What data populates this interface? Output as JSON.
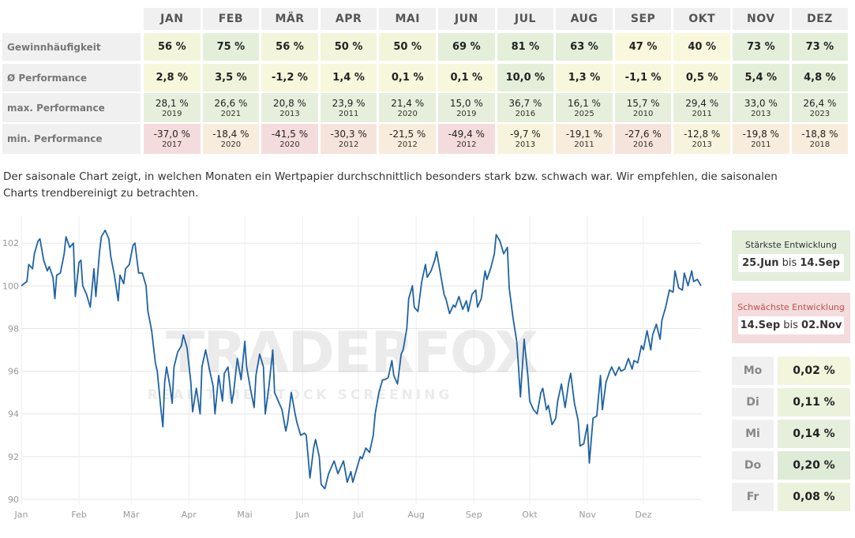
{
  "table": {
    "months": [
      "JAN",
      "FEB",
      "MÄR",
      "APR",
      "MAI",
      "JUN",
      "JUL",
      "AUG",
      "SEP",
      "OKT",
      "NOV",
      "DEZ"
    ],
    "rows": [
      {
        "label": "Gewinnhäufigkeit",
        "cells": [
          "56 %",
          "75 %",
          "56 %",
          "50 %",
          "50 %",
          "69 %",
          "81 %",
          "63 %",
          "47 %",
          "40 %",
          "73 %",
          "73 %"
        ]
      },
      {
        "label": "Ø Performance",
        "cells": [
          "2,8 %",
          "3,5 %",
          "-1,2 %",
          "1,4 %",
          "0,1 %",
          "0,1 %",
          "10,0 %",
          "1,3 %",
          "-1,1 %",
          "0,5 %",
          "5,4 %",
          "4,8 %"
        ]
      },
      {
        "label": "max. Performance",
        "cells": [
          {
            "value": "28,1 %",
            "year": "2019"
          },
          {
            "value": "26,6 %",
            "year": "2021"
          },
          {
            "value": "20,8 %",
            "year": "2013"
          },
          {
            "value": "23,9 %",
            "year": "2011"
          },
          {
            "value": "21,4 %",
            "year": "2020"
          },
          {
            "value": "15,0 %",
            "year": "2019"
          },
          {
            "value": "36,7 %",
            "year": "2016"
          },
          {
            "value": "16,1 %",
            "year": "2025"
          },
          {
            "value": "15,7 %",
            "year": "2010"
          },
          {
            "value": "29,4 %",
            "year": "2011"
          },
          {
            "value": "33,0 %",
            "year": "2013"
          },
          {
            "value": "26,4 %",
            "year": "2023"
          }
        ]
      },
      {
        "label": "min. Performance",
        "cells": [
          {
            "value": "-37,0 %",
            "year": "2017"
          },
          {
            "value": "-18,4 %",
            "year": "2020"
          },
          {
            "value": "-41,5 %",
            "year": "2020"
          },
          {
            "value": "-30,3 %",
            "year": "2012"
          },
          {
            "value": "-21,5 %",
            "year": "2012"
          },
          {
            "value": "-49,4 %",
            "year": "2012"
          },
          {
            "value": "-9,7 %",
            "year": "2013"
          },
          {
            "value": "-19,1 %",
            "year": "2011"
          },
          {
            "value": "-27,6 %",
            "year": "2016"
          },
          {
            "value": "-12,8 %",
            "year": "2013"
          },
          {
            "value": "-19,8 %",
            "year": "2011"
          },
          {
            "value": "-18,8 %",
            "year": "2018"
          }
        ]
      }
    ]
  },
  "description": "Der saisonale Chart zeigt, in welchen Monaten ein Wertpapier durchschnittlich besonders stark bzw. schwach war. Wir empfehlen, die saisonalen Charts trendbereinigt zu betrachten.",
  "chart_data": {
    "type": "line",
    "color": "#1f63a3",
    "grid": true,
    "x": [
      0,
      3,
      4,
      6,
      7,
      9,
      10,
      12,
      14,
      15,
      17,
      18,
      19,
      21,
      23,
      24,
      26,
      28,
      29,
      31,
      32,
      33,
      35,
      37,
      39,
      40,
      42,
      43,
      45,
      47,
      48,
      50,
      52,
      53,
      55,
      56,
      58,
      60,
      61,
      63,
      65,
      67,
      68,
      70,
      72,
      73,
      75,
      76,
      77,
      78,
      80,
      81,
      82,
      84,
      86,
      87,
      89,
      91,
      92,
      94,
      96,
      97,
      99,
      101,
      103,
      104,
      106,
      108,
      109,
      111,
      113,
      114,
      116,
      118,
      120,
      121,
      123,
      125,
      126,
      128,
      130,
      131,
      133,
      135,
      136,
      138,
      140,
      142,
      143,
      145,
      147,
      148,
      150,
      152,
      153,
      155,
      157,
      158,
      160,
      161,
      163,
      165,
      167,
      168,
      170,
      172,
      173,
      175,
      177,
      178,
      180,
      182,
      183,
      185,
      187,
      189,
      190,
      192,
      194,
      195,
      197,
      199,
      200,
      202,
      204,
      205,
      207,
      208,
      210,
      211,
      213,
      215,
      217,
      218,
      220,
      222,
      223,
      225,
      227,
      228,
      230,
      232,
      233,
      235,
      237,
      239,
      240,
      242,
      244,
      245,
      247,
      249,
      250,
      252,
      254,
      255,
      257,
      259,
      261,
      262,
      264,
      266,
      267,
      268,
      270,
      272,
      273,
      275,
      277,
      279,
      280,
      282,
      283,
      285,
      287,
      288,
      290,
      292,
      294,
      295,
      297,
      299,
      300,
      302,
      304,
      305,
      307,
      309,
      311,
      312,
      314,
      316,
      317,
      319,
      321,
      322,
      324,
      326,
      328,
      329,
      331,
      333,
      334,
      336,
      338,
      339,
      341,
      343,
      344,
      346,
      348,
      350,
      351,
      353,
      355,
      356,
      358,
      360,
      361,
      363,
      365
    ],
    "values": [
      100.0,
      100.2,
      101.0,
      100.8,
      101.5,
      102.1,
      102.2,
      101.2,
      100.7,
      100.9,
      100.4,
      99.4,
      100.5,
      100.6,
      101.5,
      102.3,
      101.8,
      102.0,
      99.5,
      101.1,
      101.2,
      100.0,
      99.6,
      99.0,
      100.8,
      99.5,
      101.6,
      102.3,
      102.6,
      102.2,
      101.4,
      100.5,
      99.3,
      100.5,
      100.1,
      100.8,
      101.0,
      101.9,
      102.0,
      100.6,
      100.6,
      100.0,
      98.8,
      97.9,
      96.4,
      96.0,
      94.2,
      93.4,
      95.5,
      96.2,
      95.2,
      94.5,
      96.2,
      96.9,
      97.2,
      97.7,
      97.1,
      95.5,
      94.1,
      95.2,
      94.0,
      96.2,
      97.0,
      96.1,
      95.3,
      94.0,
      95.8,
      94.6,
      95.9,
      96.2,
      94.5,
      95.0,
      96.6,
      95.6,
      97.4,
      96.2,
      95.2,
      94.3,
      95.8,
      96.8,
      96.2,
      94.0,
      95.3,
      97.0,
      95.0,
      94.6,
      94.2,
      93.2,
      93.6,
      95.0,
      94.0,
      93.6,
      93.0,
      93.1,
      93.0,
      91.0,
      92.4,
      92.8,
      92.0,
      90.7,
      90.5,
      91.2,
      91.6,
      91.8,
      91.2,
      91.6,
      91.8,
      90.8,
      91.3,
      90.8,
      91.4,
      92.0,
      91.9,
      92.4,
      92.2,
      93.0,
      94.0,
      95.0,
      95.6,
      95.6,
      95.7,
      96.5,
      95.8,
      95.4,
      96.8,
      97.0,
      98.0,
      99.4,
      100.0,
      99.0,
      98.8,
      100.2,
      101.0,
      100.4,
      100.7,
      101.2,
      101.6,
      100.6,
      99.6,
      99.4,
      98.7,
      99.1,
      99.0,
      99.5,
      98.9,
      99.3,
      98.8,
      99.6,
      99.8,
      99.0,
      99.4,
      100.7,
      100.3,
      100.8,
      101.5,
      102.4,
      102.1,
      101.5,
      101.8,
      99.9,
      98.5,
      97.4,
      96.2,
      94.8,
      97.5,
      95.8,
      94.6,
      94.2,
      94.0,
      95.0,
      95.2,
      94.2,
      94.4,
      93.5,
      93.8,
      94.6,
      95.4,
      94.3,
      95.5,
      95.9,
      94.5,
      93.7,
      92.5,
      92.6,
      93.5,
      91.7,
      93.8,
      93.9,
      95.8,
      94.2,
      95.5,
      96.0,
      96.2,
      95.8,
      96.2,
      96.0,
      96.1,
      96.6,
      96.1,
      96.5,
      96.4,
      97.2,
      97.0,
      97.9,
      97.0,
      97.7,
      98.2,
      97.5,
      98.4,
      99.0,
      99.8,
      99.7,
      100.7,
      99.9,
      99.8,
      100.6,
      100.0,
      100.7,
      100.2,
      100.3,
      100.0
    ],
    "xlim": [
      0,
      365
    ],
    "xticks": [
      {
        "value": 0,
        "label": "Jan"
      },
      {
        "value": 31,
        "label": "Feb"
      },
      {
        "value": 59,
        "label": "Mär"
      },
      {
        "value": 90,
        "label": "Apr"
      },
      {
        "value": 120,
        "label": "Mai"
      },
      {
        "value": 151,
        "label": "Jun"
      },
      {
        "value": 181,
        "label": "Jul"
      },
      {
        "value": 212,
        "label": "Aug"
      },
      {
        "value": 243,
        "label": "Sep"
      },
      {
        "value": 273,
        "label": "Okt"
      },
      {
        "value": 304,
        "label": "Nov"
      },
      {
        "value": 334,
        "label": "Dez"
      }
    ],
    "ylim": [
      90,
      103.3
    ],
    "yticks": [
      90,
      92,
      94,
      96,
      98,
      100,
      102
    ]
  },
  "watermark": {
    "logo": "TRADERFOX",
    "tagline": "REAL TIME STOCK SCREENING"
  },
  "strongest": {
    "title": "Stärkste Entwicklung",
    "from": "25.Jun",
    "sep": "bis",
    "to": "14.Sep"
  },
  "weakest": {
    "title": "Schwächste Entwicklung",
    "from": "14.Sep",
    "sep": "bis",
    "to": "02.Nov"
  },
  "weekdays": [
    {
      "day": "Mo",
      "value": "0,02 %"
    },
    {
      "day": "Di",
      "value": "0,11 %"
    },
    {
      "day": "Mi",
      "value": "0,14 %"
    },
    {
      "day": "Do",
      "value": "0,20 %"
    },
    {
      "day": "Fr",
      "value": "0,08 %"
    }
  ]
}
